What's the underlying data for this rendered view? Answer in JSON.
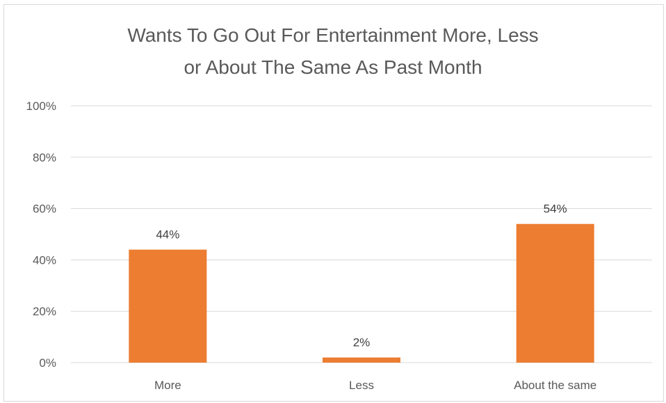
{
  "chart_data": {
    "type": "bar",
    "title_lines": [
      "Wants To Go Out For Entertainment More, Less",
      "or About The Same As Past Month"
    ],
    "categories": [
      "More",
      "Less",
      "About the same"
    ],
    "values": [
      44,
      2,
      54
    ],
    "value_labels": [
      "44%",
      "2%",
      "54%"
    ],
    "ylim": [
      0,
      100
    ],
    "yticks": [
      0,
      20,
      40,
      60,
      80,
      100
    ],
    "ytick_labels": [
      "0%",
      "20%",
      "40%",
      "60%",
      "80%",
      "100%"
    ],
    "xlabel": "",
    "ylabel": "",
    "grid": true,
    "legend": "none",
    "bar_color": "#ed7d31",
    "grid_color": "#d9d9d9"
  }
}
